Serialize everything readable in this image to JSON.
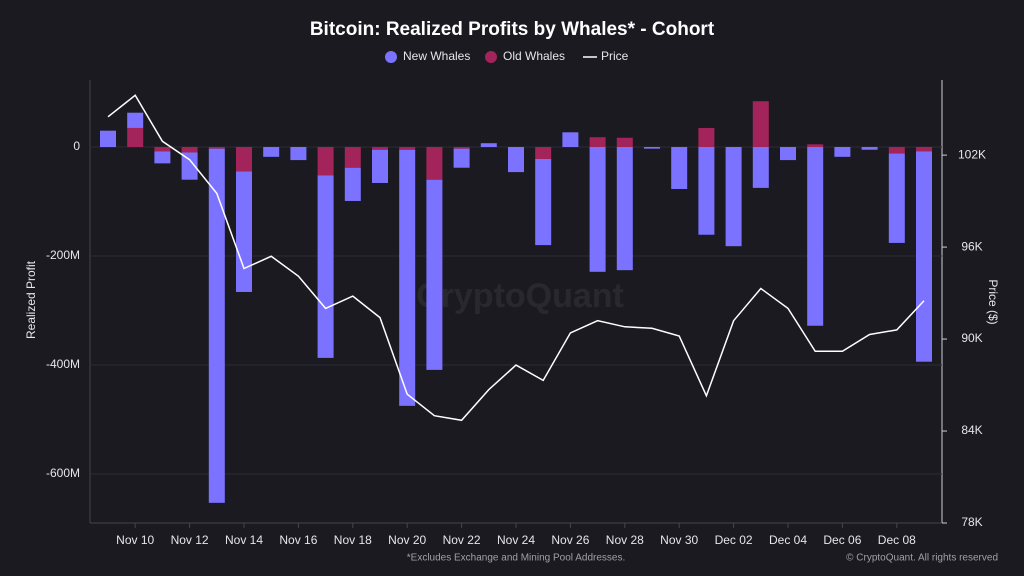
{
  "chart_data": {
    "type": "bar",
    "title": "Bitcoin: Realized Profits by Whales* - Cohort",
    "footnote": "*Excludes Exchange and Mining Pool Addresses.",
    "credit": "© CryptoQuant. All rights reserved",
    "watermark": "CryptoQuant",
    "ylabel": "Realized Profit",
    "y2label": "Price ($)",
    "legend": "top",
    "grid": true,
    "categories": [
      null,
      "Nov 10",
      null,
      "Nov 12",
      null,
      "Nov 14",
      null,
      "Nov 16",
      null,
      "Nov 18",
      null,
      "Nov 20",
      null,
      "Nov 22",
      null,
      "Nov 24",
      null,
      "Nov 26",
      null,
      "Nov 28",
      null,
      "Nov 30",
      null,
      "Dec 02",
      null,
      "Dec 04",
      null,
      "Dec 06",
      null,
      "Dec 08",
      null
    ],
    "series": [
      {
        "name": "New Whales",
        "color": "#7b73ff",
        "values": [
          30,
          28,
          -22,
          -50,
          -650,
          -221,
          -18,
          -24,
          -335,
          -61,
          -61,
          -470,
          -349,
          -35,
          7,
          -46,
          -158,
          27,
          -229,
          -226,
          -3,
          -77,
          -161,
          -182,
          -75,
          -24,
          -328,
          -18,
          -5,
          -164,
          -386
        ]
      },
      {
        "name": "Old Whales",
        "color": "#a3245a",
        "values": [
          0,
          35,
          -8,
          -10,
          -3,
          -45,
          0,
          0,
          -52,
          -38,
          -5,
          -5,
          -60,
          -3,
          0,
          0,
          -22,
          0,
          18,
          17,
          0,
          0,
          35,
          0,
          84,
          0,
          5,
          0,
          0,
          -12,
          -8
        ]
      },
      {
        "name": "Price",
        "color": "#ffffff",
        "axis": "y2",
        "values": [
          104.5,
          105.9,
          102.9,
          101.7,
          99.5,
          94.6,
          95.4,
          94.1,
          92.0,
          92.8,
          91.4,
          86.4,
          85.0,
          84.7,
          86.7,
          88.3,
          87.3,
          90.4,
          91.2,
          90.8,
          90.7,
          90.2,
          86.3,
          91.2,
          93.3,
          92.0,
          89.2,
          89.2,
          90.3,
          90.6,
          92.5
        ]
      }
    ],
    "ylim": [
      -690,
      123
    ],
    "yticks": [
      0,
      {
        "value": -200,
        "label": "-200M"
      },
      {
        "value": -400,
        "label": "-400M"
      },
      {
        "value": -600,
        "label": "-600M"
      }
    ],
    "y2lim": [
      78,
      106.9
    ],
    "y2ticks": [
      {
        "value": 78,
        "label": "78K"
      },
      {
        "value": 84,
        "label": "84K"
      },
      {
        "value": 90,
        "label": "90K"
      },
      {
        "value": 96,
        "label": "96K"
      },
      {
        "value": 102,
        "label": "102K"
      }
    ]
  }
}
